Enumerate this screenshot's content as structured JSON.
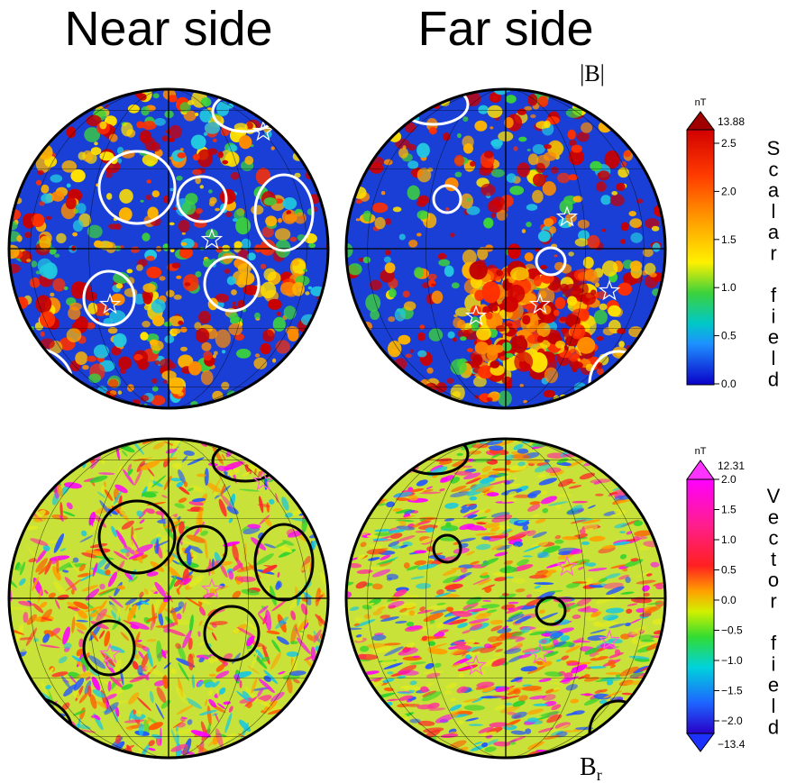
{
  "headers": {
    "near": "Near side",
    "far": "Far side"
  },
  "quantity_labels": {
    "scalar": "|B|",
    "radial_main": "B",
    "radial_sub": "r"
  },
  "colorbar_scalar": {
    "unit": "nT",
    "max_label": "13.88",
    "ticks": [
      "2.5",
      "2.0",
      "1.5",
      "1.0",
      "0.5",
      "0.0"
    ],
    "title_letters": [
      "S",
      "c",
      "a",
      "l",
      "a",
      "r",
      "",
      "f",
      "i",
      "e",
      "l",
      "d"
    ]
  },
  "colorbar_vector": {
    "unit": "nT",
    "max_label": "12.31",
    "min_label": "−13.4",
    "ticks": [
      "2.0",
      "1.5",
      "1.0",
      "0.5",
      "0.0",
      "−0.5",
      "−1.0",
      "−1.5",
      "−2.0"
    ],
    "title_letters": [
      "V",
      "e",
      "c",
      "t",
      "o",
      "r",
      "",
      "f",
      "i",
      "e",
      "l",
      "d"
    ]
  },
  "colors": {
    "scalar_bg": "#1a3fd6",
    "vector_bg": "#c8e23a",
    "circle_scalar": "#ffffff",
    "circle_vector": "#000000"
  }
}
